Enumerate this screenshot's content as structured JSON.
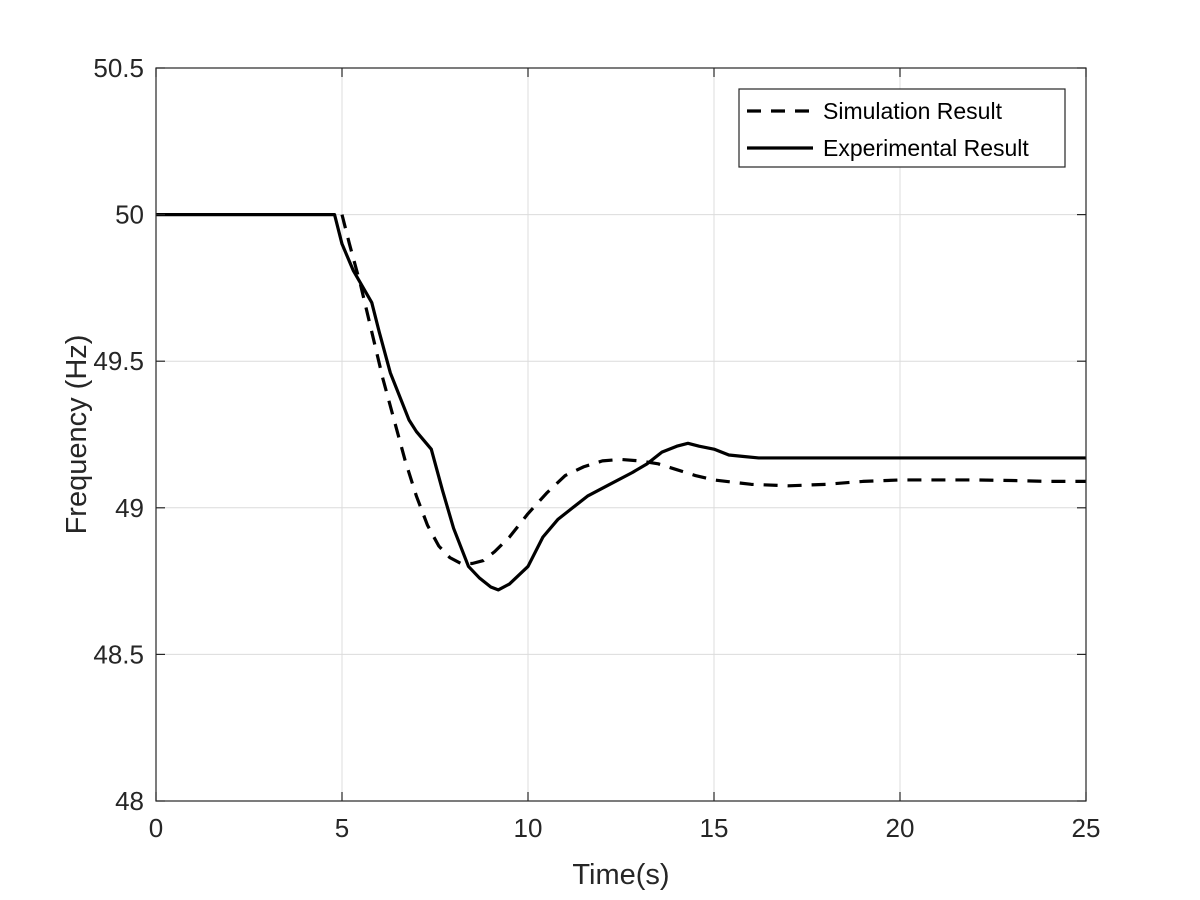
{
  "chart_data": {
    "type": "line",
    "title": "",
    "xlabel": "Time(s)",
    "ylabel": "Frequency (Hz)",
    "xlim": [
      0,
      25
    ],
    "ylim": [
      48,
      50.5
    ],
    "xticks": [
      0,
      5,
      10,
      15,
      20,
      25
    ],
    "yticks": [
      48,
      48.5,
      49,
      49.5,
      50,
      50.5
    ],
    "xtick_labels": [
      "0",
      "5",
      "10",
      "15",
      "20",
      "25"
    ],
    "ytick_labels": [
      "48",
      "48.5",
      "49",
      "49.5",
      "50",
      "50.5"
    ],
    "grid": true,
    "legend_position": "top-right",
    "series": [
      {
        "name": "Simulation Result",
        "style": "dashed",
        "color": "#000000",
        "x": [
          5.0,
          5.2,
          5.5,
          5.8,
          6.1,
          6.4,
          6.7,
          7.0,
          7.3,
          7.6,
          7.9,
          8.2,
          8.5,
          8.8,
          9.1,
          9.5,
          10.0,
          10.5,
          11.0,
          11.5,
          12.0,
          12.5,
          13.0,
          13.5,
          14.0,
          14.5,
          15.0,
          16.0,
          17.0,
          18.0,
          19.0,
          20.0,
          21.0,
          22.0,
          23.0,
          24.0,
          25.0
        ],
        "y": [
          50.0,
          49.9,
          49.76,
          49.6,
          49.44,
          49.3,
          49.16,
          49.04,
          48.94,
          48.87,
          48.83,
          48.81,
          48.81,
          48.82,
          48.85,
          48.9,
          48.98,
          49.05,
          49.11,
          49.14,
          49.16,
          49.165,
          49.16,
          49.15,
          49.13,
          49.11,
          49.095,
          49.08,
          49.075,
          49.08,
          49.09,
          49.095,
          49.095,
          49.095,
          49.093,
          49.09,
          49.09
        ]
      },
      {
        "name": "Experimental Result",
        "style": "solid",
        "color": "#000000",
        "x": [
          0,
          4.8,
          5.0,
          5.3,
          5.8,
          6.0,
          6.3,
          6.8,
          7.0,
          7.4,
          7.7,
          8.0,
          8.4,
          8.7,
          9.0,
          9.2,
          9.5,
          10.0,
          10.4,
          10.8,
          11.2,
          11.6,
          12.2,
          12.8,
          13.2,
          13.6,
          14.0,
          14.3,
          14.6,
          15.0,
          15.4,
          15.8,
          16.2,
          17.0,
          20.0,
          25.0
        ],
        "y": [
          50.0,
          50.0,
          49.9,
          49.81,
          49.7,
          49.6,
          49.46,
          49.3,
          49.26,
          49.2,
          49.06,
          48.93,
          48.8,
          48.76,
          48.73,
          48.72,
          48.74,
          48.8,
          48.9,
          48.96,
          49.0,
          49.04,
          49.08,
          49.12,
          49.15,
          49.19,
          49.21,
          49.22,
          49.21,
          49.2,
          49.18,
          49.175,
          49.17,
          49.17,
          49.17,
          49.17
        ]
      }
    ]
  }
}
